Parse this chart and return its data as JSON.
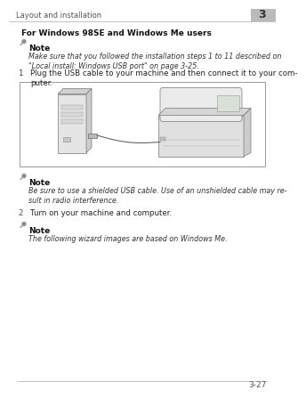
{
  "bg_color": "#ffffff",
  "header_line_color": "#aaaaaa",
  "header_text": "Layout and installation",
  "header_text_color": "#555555",
  "header_fontsize": 6.0,
  "chapter_num": "3",
  "chapter_bg": "#bbbbbb",
  "chapter_fontsize": 9,
  "section_title": "For Windows 98SE and Windows Me users",
  "section_title_fontsize": 6.5,
  "note_dots_color": "#333333",
  "note_label_fontsize": 6.5,
  "note_text_fontsize": 5.8,
  "body_text_fontsize": 6.2,
  "step_num_fontsize": 6.2,
  "step_text_color": "#222222",
  "note_text_color": "#333333",
  "box_edge_color": "#999999",
  "box_fill_color": "#ffffff",
  "footer_line_color": "#aaaaaa",
  "footer_text": "3-27",
  "footer_fontsize": 6.5,
  "note1_bold": "Note",
  "note1_italic": "Make sure that you followed the installation steps 1 to 11 described on\n\"Local install: Windows USB port\" on page 3-25.",
  "step1_num": "1",
  "step1_text": "Plug the USB cable to your machine and then connect it to your com-\nputer.",
  "note2_bold": "Note",
  "note2_italic": "Be sure to use a shielded USB cable. Use of an unshielded cable may re-\nsult in radio interference.",
  "step2_num": "2",
  "step2_text": "Turn on your machine and computer.",
  "note3_bold": "Note",
  "note3_italic": "The following wizard images are based on Windows Me."
}
